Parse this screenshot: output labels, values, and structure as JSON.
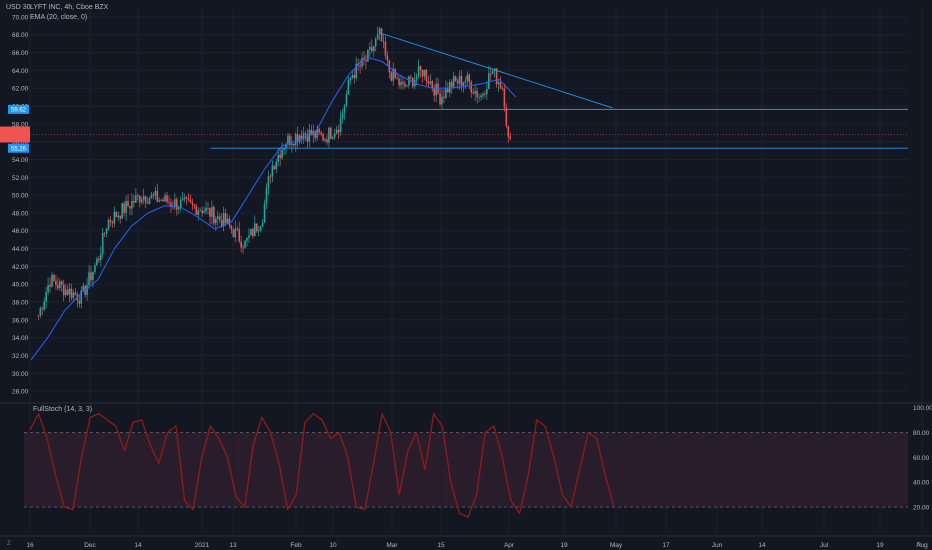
{
  "header": {
    "currency": "USD",
    "currency_value": "30",
    "symbol": "LYFT INC, 4h, Cboe BZX",
    "ema": "EMA (20, close, 0)",
    "osc_title": "FullStoch (14, 3, 3)",
    "corner_left": "Z",
    "corner_right": "⚙"
  },
  "colors": {
    "background": "#131722",
    "up": "#26a69a",
    "down": "#ef5350",
    "ema": "#2962ff",
    "trendline": "#2196f3",
    "stoch": "#8b1a1a",
    "stoch_band": "#2a1d2b",
    "price_tag": "#f05350"
  },
  "chart_data": [
    {
      "type": "candlestick",
      "title": "LYFT INC, 4h, Cboe BZX",
      "ylim": [
        27,
        71
      ],
      "yticks": [
        "28.00",
        "30.00",
        "32.00",
        "34.00",
        "36.00",
        "38.00",
        "40.00",
        "42.00",
        "44.00",
        "46.00",
        "48.00",
        "50.00",
        "52.00",
        "54.00",
        "56.00",
        "58.00",
        "60.00",
        "62.00",
        "64.00",
        "66.00",
        "68.00",
        "70.00"
      ],
      "xticks": [
        "16",
        "Dec",
        "14",
        "2021",
        "13",
        "Feb",
        "10",
        "Mar",
        "15",
        "Apr",
        "19",
        "May",
        "17",
        "Jun",
        "14",
        "Jul",
        "19",
        "Aug"
      ],
      "price_labels": [
        "59.62",
        "55.26"
      ],
      "ohlc_anchors": [
        {
          "date": "Nov 16",
          "close": 36.5
        },
        {
          "date": "Nov 20",
          "close": 40.5
        },
        {
          "date": "Nov 25",
          "close": 39.5
        },
        {
          "date": "Dec 1",
          "close": 38.5
        },
        {
          "date": "Dec 7",
          "close": 43
        },
        {
          "date": "Dec 10",
          "close": 47
        },
        {
          "date": "Dec 16",
          "close": 48.5
        },
        {
          "date": "Dec 22",
          "close": 50
        },
        {
          "date": "Jan 4",
          "close": 49
        },
        {
          "date": "Jan 12",
          "close": 48.5
        },
        {
          "date": "Jan 20",
          "close": 47
        },
        {
          "date": "Jan 27",
          "close": 44.5
        },
        {
          "date": "Feb 2",
          "close": 47.5
        },
        {
          "date": "Feb 5",
          "close": 53
        },
        {
          "date": "Feb 10",
          "close": 56
        },
        {
          "date": "Feb 16",
          "close": 57
        },
        {
          "date": "Feb 24",
          "close": 56.5
        },
        {
          "date": "Mar 1",
          "close": 58
        },
        {
          "date": "Mar 5",
          "close": 63.5
        },
        {
          "date": "Mar 10",
          "close": 65
        },
        {
          "date": "Mar 15",
          "close": 68
        },
        {
          "date": "Mar 18",
          "close": 64
        },
        {
          "date": "Mar 23",
          "close": 62
        },
        {
          "date": "Mar 30",
          "close": 64
        },
        {
          "date": "Apr 5",
          "close": 61
        },
        {
          "date": "Apr 9",
          "close": 62.5
        },
        {
          "date": "Apr 14",
          "close": 63
        },
        {
          "date": "Apr 19",
          "close": 61
        },
        {
          "date": "Apr 23",
          "close": 64
        },
        {
          "date": "Apr 27",
          "close": 62
        },
        {
          "date": "Apr 29",
          "close": 55.3
        },
        {
          "date": "Apr 30",
          "close": 56.3
        }
      ],
      "series": [
        {
          "name": "EMA (20, close, 0)",
          "values": [
            31.5,
            34,
            37,
            39,
            40.5,
            44,
            46.5,
            48,
            48.8,
            48.6,
            47.5,
            46.2,
            47,
            50,
            53,
            55.5,
            56.2,
            57,
            60.5,
            63.5,
            65.5,
            65,
            63.5,
            62.5,
            62,
            62,
            62.2,
            62.5,
            63,
            61
          ]
        }
      ],
      "drawings": [
        {
          "kind": "trendline",
          "from": {
            "date": "Mar 15",
            "price": 68.2
          },
          "to": {
            "date": "Jun 4",
            "price": 59.8
          }
        },
        {
          "kind": "hline",
          "price": 59.62,
          "from_date": "Mar 22"
        },
        {
          "kind": "hline",
          "price": 55.26,
          "from_date": "Jan 15"
        }
      ]
    },
    {
      "type": "line",
      "title": "FullStoch (14, 3, 3)",
      "ylim": [
        0,
        102
      ],
      "yticks": [
        "20.00",
        "40.00",
        "60.00",
        "80.00",
        "100.00"
      ],
      "bands": [
        20,
        80
      ],
      "series": [
        {
          "name": "FullStoch (14, 3, 3)",
          "values": [
            82,
            95,
            75,
            45,
            20,
            18,
            60,
            92,
            95,
            90,
            85,
            65,
            88,
            90,
            70,
            55,
            80,
            85,
            25,
            18,
            60,
            85,
            75,
            60,
            28,
            20,
            70,
            92,
            80,
            55,
            18,
            30,
            88,
            95,
            90,
            75,
            80,
            60,
            20,
            18,
            55,
            95,
            80,
            30,
            65,
            80,
            50,
            95,
            85,
            40,
            15,
            12,
            30,
            80,
            85,
            60,
            25,
            15,
            45,
            90,
            85,
            60,
            30,
            20,
            50,
            80,
            75,
            45,
            20
          ]
        }
      ]
    }
  ]
}
